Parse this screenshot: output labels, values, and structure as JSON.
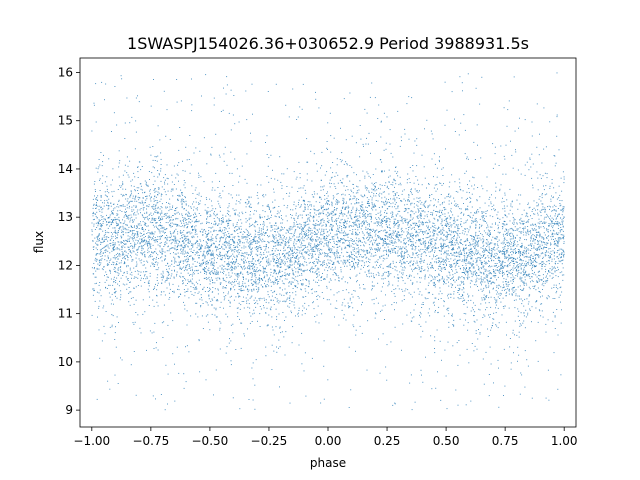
{
  "chart_data": {
    "type": "scatter",
    "title": "1SWASPJ154026.36+030652.9 Period 3988931.5s",
    "xlabel": "phase",
    "ylabel": "flux",
    "xlim": [
      -1.05,
      1.05
    ],
    "ylim": [
      8.65,
      16.3
    ],
    "xticks": [
      -1.0,
      -0.75,
      -0.5,
      -0.25,
      0.0,
      0.25,
      0.5,
      0.75,
      1.0
    ],
    "xtick_labels": [
      "−1.00",
      "−0.75",
      "−0.50",
      "−0.25",
      "0.00",
      "0.25",
      "0.50",
      "0.75",
      "1.00"
    ],
    "yticks": [
      9,
      10,
      11,
      12,
      13,
      14,
      15,
      16
    ],
    "ytick_labels": [
      "9",
      "10",
      "11",
      "12",
      "13",
      "14",
      "15",
      "16"
    ],
    "grid": false,
    "marker_color": "#1f77b4",
    "phase_range": [
      -1.0,
      1.0
    ],
    "flux_range": [
      9.0,
      16.0
    ],
    "mean_flux_profile": {
      "phase": [
        -1.0,
        -0.9,
        -0.8,
        -0.7,
        -0.6,
        -0.5,
        -0.4,
        -0.3,
        -0.2,
        -0.1,
        0.0,
        0.1,
        0.2,
        0.3,
        0.4,
        0.5,
        0.6,
        0.7,
        0.8,
        0.9,
        1.0
      ],
      "flux": [
        12.6,
        12.6,
        12.75,
        12.7,
        12.55,
        12.35,
        12.2,
        12.15,
        12.2,
        12.4,
        12.6,
        12.6,
        12.75,
        12.7,
        12.55,
        12.35,
        12.2,
        12.15,
        12.2,
        12.4,
        12.6
      ]
    },
    "typical_scatter": 0.6,
    "outlier_range": [
      9.0,
      16.0
    ]
  }
}
